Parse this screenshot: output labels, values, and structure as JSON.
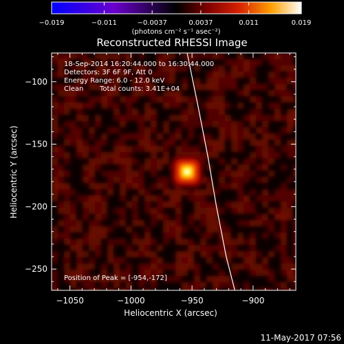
{
  "chart_data": {
    "type": "heatmap",
    "title": "Reconstructed RHESSI Image",
    "colorbar": {
      "ticks": [
        "−0.019",
        "−0.011",
        "−0.0037",
        "0.0037",
        "0.011",
        "0.019"
      ],
      "tick_values": [
        -0.019,
        -0.011,
        -0.0037,
        0.0037,
        0.011,
        0.019
      ],
      "range": [
        -0.019,
        0.019
      ],
      "unit": "(photons cm⁻² s⁻¹ asec⁻²)",
      "colormap": [
        "#0000ff",
        "#7700cc",
        "#000000",
        "#8b0000",
        "#ff4500",
        "#ffff80",
        "#ffffff"
      ]
    },
    "xlabel": "Heliocentric X (arcsec)",
    "ylabel": "Heliocentric Y (arcsec)",
    "xlim": [
      -1065,
      -865
    ],
    "ylim": [
      -267,
      -77
    ],
    "xticks": [
      -1050,
      -1000,
      -950,
      -900
    ],
    "yticks": [
      -100,
      -150,
      -200,
      -250
    ],
    "source": {
      "x": -954,
      "y": -172,
      "peak": 0.019
    },
    "limb_curve": [
      [
        -954,
        -77
      ],
      [
        -945,
        -120
      ],
      [
        -937,
        -160
      ],
      [
        -930,
        -200
      ],
      [
        -922,
        -240
      ],
      [
        -915,
        -267
      ]
    ],
    "annotations": {
      "time_range": "18-Sep-2014 16:20:44.000 to 16:30:44.000",
      "detectors": "Detectors: 3F 6F 9F, Att 0",
      "energy": "Energy Range: 6.0 - 12.0 keV",
      "method": "Clean",
      "counts": "Total counts: 3.41E+04",
      "peak_position": "Position of Peak = [-954,-172]"
    },
    "footer_date": "11-May-2017 07:56"
  }
}
